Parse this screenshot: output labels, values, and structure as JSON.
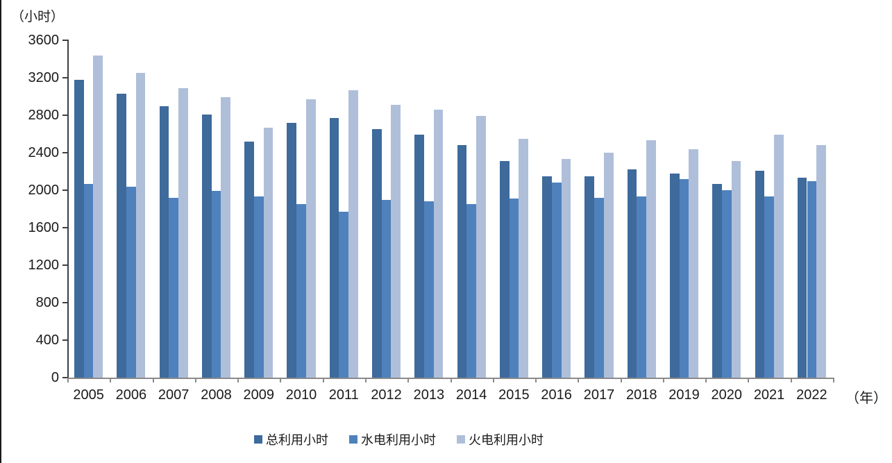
{
  "axis": {
    "y_unit_label": "（小时）",
    "x_unit_label": "（年）"
  },
  "chart_data": {
    "type": "bar",
    "title": "",
    "xlabel": "（年）",
    "ylabel": "（小时）",
    "categories": [
      "2005",
      "2006",
      "2007",
      "2008",
      "2009",
      "2010",
      "2011",
      "2012",
      "2013",
      "2014",
      "2015",
      "2016",
      "2017",
      "2018",
      "2019",
      "2020",
      "2021",
      "2022"
    ],
    "series": [
      {
        "name": "总利用小时",
        "color": "#3E6A9C",
        "values": [
          3180,
          3030,
          2900,
          2810,
          2520,
          2720,
          2770,
          2650,
          2590,
          2480,
          2310,
          2150,
          2150,
          2220,
          2180,
          2070,
          2210,
          2130
        ]
      },
      {
        "name": "水电利用小时",
        "color": "#4F81BD",
        "values": [
          2070,
          2040,
          1920,
          1990,
          1930,
          1850,
          1770,
          1900,
          1880,
          1850,
          1910,
          2080,
          1920,
          1930,
          2120,
          2000,
          1930,
          2100
        ]
      },
      {
        "name": "火电利用小时",
        "color": "#AFBFDA",
        "values": [
          3440,
          3250,
          3090,
          2990,
          2670,
          2970,
          3070,
          2910,
          2860,
          2790,
          2550,
          2330,
          2400,
          2530,
          2440,
          2310,
          2590,
          2480
        ]
      }
    ],
    "ylim": [
      0,
      3600
    ],
    "y_tick_step": 400,
    "y_ticks": [
      0,
      400,
      800,
      1200,
      1600,
      2000,
      2400,
      2800,
      3200,
      3600
    ],
    "grid": false,
    "legend_position": "bottom"
  }
}
